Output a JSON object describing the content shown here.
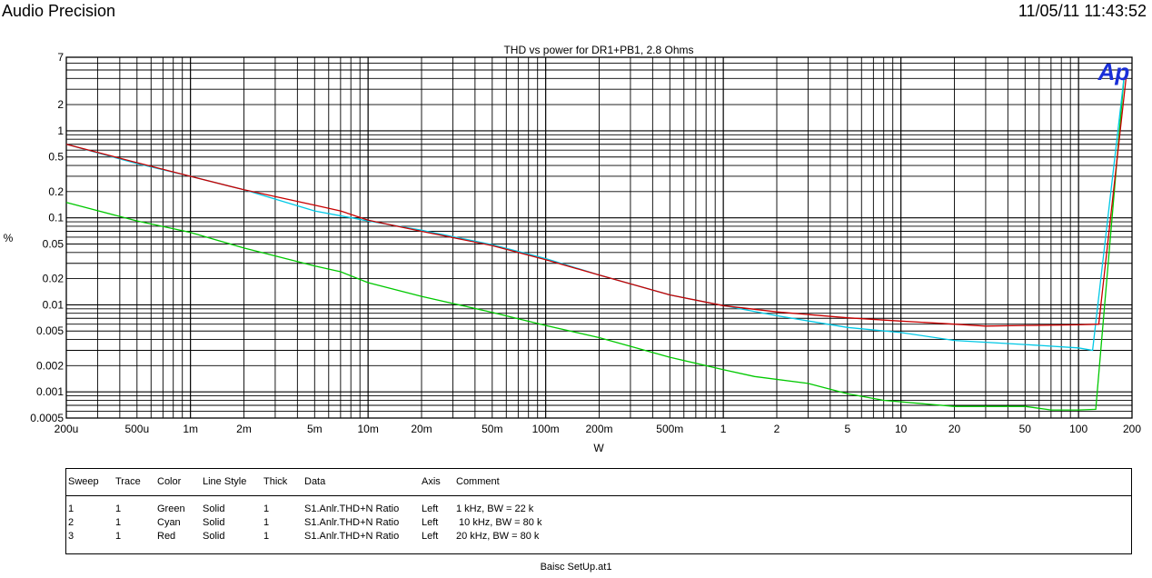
{
  "header": {
    "left": "Audio Precision",
    "right": "11/05/11 11:43:52"
  },
  "chart_data": {
    "type": "line",
    "title": "THD vs power for DR1+PB1, 2.8 Ohms",
    "xlabel": "W",
    "ylabel": "%",
    "x_scale": "log",
    "y_scale": "log",
    "xlim": [
      0.0002,
      200
    ],
    "ylim": [
      0.0005,
      7
    ],
    "grid": true,
    "logo": "Ap",
    "x_ticks": [
      {
        "v": 0.0002,
        "label": "200u"
      },
      {
        "v": 0.0005,
        "label": "500u"
      },
      {
        "v": 0.001,
        "label": "1m"
      },
      {
        "v": 0.002,
        "label": "2m"
      },
      {
        "v": 0.005,
        "label": "5m"
      },
      {
        "v": 0.01,
        "label": "10m"
      },
      {
        "v": 0.02,
        "label": "20m"
      },
      {
        "v": 0.05,
        "label": "50m"
      },
      {
        "v": 0.1,
        "label": "100m"
      },
      {
        "v": 0.2,
        "label": "200m"
      },
      {
        "v": 0.5,
        "label": "500m"
      },
      {
        "v": 1,
        "label": "1"
      },
      {
        "v": 2,
        "label": "2"
      },
      {
        "v": 5,
        "label": "5"
      },
      {
        "v": 10,
        "label": "10"
      },
      {
        "v": 20,
        "label": "20"
      },
      {
        "v": 50,
        "label": "50"
      },
      {
        "v": 100,
        "label": "100"
      },
      {
        "v": 200,
        "label": "200"
      }
    ],
    "y_ticks": [
      {
        "v": 7,
        "label": "7"
      },
      {
        "v": 2,
        "label": "2"
      },
      {
        "v": 1,
        "label": "1"
      },
      {
        "v": 0.5,
        "label": "0.5"
      },
      {
        "v": 0.2,
        "label": "0.2"
      },
      {
        "v": 0.1,
        "label": "0.1"
      },
      {
        "v": 0.05,
        "label": "0.05"
      },
      {
        "v": 0.02,
        "label": "0.02"
      },
      {
        "v": 0.01,
        "label": "0.01"
      },
      {
        "v": 0.005,
        "label": "0.005"
      },
      {
        "v": 0.002,
        "label": "0.002"
      },
      {
        "v": 0.001,
        "label": "0.001"
      },
      {
        "v": 0.0005,
        "label": "0.0005"
      }
    ],
    "series": [
      {
        "color": "#00c800",
        "x": [
          0.0002,
          0.0005,
          0.001,
          0.002,
          0.005,
          0.007,
          0.01,
          0.02,
          0.05,
          0.1,
          0.2,
          0.5,
          1,
          1.5,
          3,
          5,
          8,
          20,
          50,
          70,
          100,
          125,
          180
        ],
        "y": [
          0.15,
          0.092,
          0.068,
          0.045,
          0.028,
          0.024,
          0.018,
          0.0125,
          0.0082,
          0.0058,
          0.0042,
          0.0025,
          0.0018,
          0.0015,
          0.00125,
          0.00095,
          0.0008,
          0.00068,
          0.00068,
          0.00062,
          0.00062,
          0.00063,
          4.0
        ]
      },
      {
        "color": "#00c8e6",
        "x": [
          0.0002,
          0.0005,
          0.001,
          0.002,
          0.005,
          0.01,
          0.02,
          0.05,
          0.1,
          0.2,
          0.5,
          1,
          2,
          5,
          10,
          20,
          50,
          100,
          120,
          180
        ],
        "y": [
          0.7,
          0.42,
          0.3,
          0.21,
          0.12,
          0.092,
          0.072,
          0.049,
          0.034,
          0.022,
          0.013,
          0.0098,
          0.0075,
          0.0055,
          0.0048,
          0.0039,
          0.0035,
          0.0032,
          0.003,
          4.0
        ]
      },
      {
        "color": "#c80000",
        "x": [
          0.0002,
          0.0005,
          0.001,
          0.002,
          0.005,
          0.007,
          0.01,
          0.02,
          0.05,
          0.1,
          0.2,
          0.5,
          1,
          2,
          5,
          10,
          20,
          30,
          50,
          100,
          130,
          185
        ],
        "y": [
          0.7,
          0.43,
          0.3,
          0.21,
          0.14,
          0.12,
          0.094,
          0.07,
          0.048,
          0.033,
          0.022,
          0.013,
          0.0098,
          0.0083,
          0.0071,
          0.0065,
          0.006,
          0.0057,
          0.0058,
          0.0059,
          0.006,
          4.0
        ]
      }
    ]
  },
  "legend": {
    "headers": [
      "Sweep",
      "Trace",
      "Color",
      "Line Style",
      "Thick",
      "Data",
      "Axis",
      "Comment"
    ],
    "rows": [
      [
        "1",
        "1",
        "Green",
        "Solid",
        "1",
        "S1.Anlr.THD+N Ratio",
        "Left",
        "1 kHz, BW = 22 k"
      ],
      [
        "2",
        "1",
        "Cyan",
        "Solid",
        "1",
        "S1.Anlr.THD+N Ratio",
        "Left",
        " 10 kHz, BW = 80 k"
      ],
      [
        "3",
        "1",
        "Red",
        "Solid",
        "1",
        "S1.Anlr.THD+N Ratio",
        "Left",
        "20 kHz, BW = 80 k"
      ]
    ]
  },
  "footer": "Baisc SetUp.at1"
}
